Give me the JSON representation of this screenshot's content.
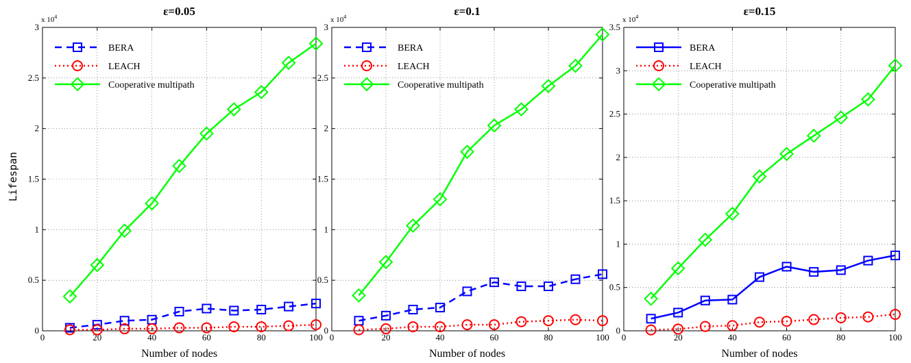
{
  "figure": {
    "ylabel": "Lifespan",
    "xlabel": "Number of nodes",
    "multiplier": "x 10",
    "multiplier_exp": "4"
  },
  "chart_data": [
    {
      "type": "line",
      "title": "ε=0.05",
      "xlabel": "Number of nodes",
      "ylabel": "Lifespan",
      "xlim": [
        0,
        100
      ],
      "ylim": [
        0,
        3
      ],
      "xticks": [
        0,
        20,
        40,
        60,
        80,
        100
      ],
      "yticks": [
        0,
        0.5,
        1,
        1.5,
        2,
        2.5,
        3
      ],
      "ytick_labels": [
        "0",
        "0.5",
        "1",
        "1.5",
        "2",
        "2.5",
        "3"
      ],
      "y_multiplier": "x 10^4",
      "grid": true,
      "legend_position": "top-left",
      "x": [
        10,
        20,
        30,
        40,
        50,
        60,
        70,
        80,
        90,
        100
      ],
      "series": [
        {
          "name": "BERA",
          "color": "#0000ff",
          "style": "dashed",
          "marker": "square",
          "values": [
            0.03,
            0.06,
            0.1,
            0.11,
            0.19,
            0.22,
            0.2,
            0.21,
            0.24,
            0.27
          ]
        },
        {
          "name": "LEACH",
          "color": "#ff0000",
          "style": "dotted",
          "marker": "circle",
          "values": [
            0.01,
            0.01,
            0.02,
            0.02,
            0.03,
            0.03,
            0.04,
            0.04,
            0.05,
            0.06
          ]
        },
        {
          "name": "Cooperative multipath",
          "color": "#00ff00",
          "style": "solid",
          "marker": "diamond",
          "values": [
            0.34,
            0.65,
            0.99,
            1.26,
            1.63,
            1.95,
            2.19,
            2.36,
            2.65,
            2.84
          ]
        }
      ]
    },
    {
      "type": "line",
      "title": "ε=0.1",
      "xlabel": "Number of nodes",
      "xlim": [
        0,
        100
      ],
      "ylim": [
        0,
        3
      ],
      "xticks": [
        0,
        20,
        40,
        60,
        80,
        100
      ],
      "yticks": [
        0,
        0.5,
        1,
        1.5,
        2,
        2.5,
        3
      ],
      "ytick_labels": [
        "0",
        "0.5",
        "1",
        "1.5",
        "2",
        "2.5",
        "3"
      ],
      "y_multiplier": "x 10^4",
      "grid": true,
      "legend_position": "top-left",
      "x": [
        10,
        20,
        30,
        40,
        50,
        60,
        70,
        80,
        90,
        100
      ],
      "series": [
        {
          "name": "BERA",
          "color": "#0000ff",
          "style": "dashed",
          "marker": "square",
          "values": [
            0.1,
            0.15,
            0.21,
            0.23,
            0.39,
            0.48,
            0.44,
            0.44,
            0.51,
            0.56
          ]
        },
        {
          "name": "LEACH",
          "color": "#ff0000",
          "style": "dotted",
          "marker": "circle",
          "values": [
            0.01,
            0.02,
            0.04,
            0.04,
            0.06,
            0.06,
            0.09,
            0.1,
            0.11,
            0.1
          ]
        },
        {
          "name": "Cooperative multipath",
          "color": "#00ff00",
          "style": "solid",
          "marker": "diamond",
          "values": [
            0.35,
            0.68,
            1.04,
            1.3,
            1.77,
            2.03,
            2.19,
            2.42,
            2.62,
            2.93
          ]
        }
      ]
    },
    {
      "type": "line",
      "title": "ε=0.15",
      "xlabel": "Number of nodes",
      "xlim": [
        0,
        100
      ],
      "ylim": [
        0,
        3.5
      ],
      "xticks": [
        0,
        20,
        40,
        60,
        80,
        100
      ],
      "yticks": [
        0,
        0.5,
        1,
        1.5,
        2,
        2.5,
        3,
        3.5
      ],
      "ytick_labels": [
        "0",
        "0.5",
        "1",
        "1.5",
        "2",
        "2.5",
        "3",
        "3.5"
      ],
      "y_multiplier": "x 10^4",
      "grid": true,
      "legend_position": "top-left",
      "x": [
        10,
        20,
        30,
        40,
        50,
        60,
        70,
        80,
        90,
        100
      ],
      "series": [
        {
          "name": "BERA",
          "color": "#0000ff",
          "style": "solid",
          "marker": "square",
          "values": [
            0.14,
            0.21,
            0.35,
            0.36,
            0.62,
            0.74,
            0.68,
            0.7,
            0.81,
            0.87
          ]
        },
        {
          "name": "LEACH",
          "color": "#ff0000",
          "style": "dotted",
          "marker": "circle",
          "values": [
            0.01,
            0.02,
            0.05,
            0.06,
            0.1,
            0.11,
            0.13,
            0.15,
            0.16,
            0.19
          ]
        },
        {
          "name": "Cooperative multipath",
          "color": "#00ff00",
          "style": "solid",
          "marker": "diamond",
          "values": [
            0.37,
            0.72,
            1.05,
            1.35,
            1.78,
            2.04,
            2.25,
            2.46,
            2.67,
            3.06
          ]
        }
      ]
    }
  ]
}
